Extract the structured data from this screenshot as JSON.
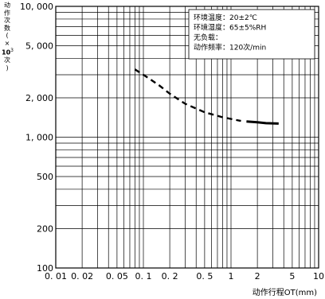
{
  "chart_data": {
    "type": "line",
    "x_scale": "log",
    "y_scale": "log",
    "xlim": [
      0.01,
      10
    ],
    "ylim": [
      100,
      10000
    ],
    "x_ticks": [
      0.01,
      0.02,
      0.05,
      0.1,
      0.2,
      0.5,
      1,
      2,
      5,
      10
    ],
    "x_tick_labels": [
      "0. 01",
      "0. 02",
      "0. 05",
      "0. 1",
      "0. 2",
      "0. 5",
      "1",
      "2",
      "5",
      "10"
    ],
    "y_ticks": [
      100,
      200,
      500,
      1000,
      2000,
      5000,
      10000
    ],
    "y_tick_labels": [
      "100",
      "200",
      "500",
      "1, 000",
      "2, 000",
      "5, 000",
      "10, 000"
    ],
    "grid": true,
    "xlabel": "动作行程OT(mm)",
    "ylabel": {
      "chars": [
        "动",
        "作",
        "次",
        "数",
        "(",
        "×"
      ],
      "base": "10",
      "exp": "3",
      "tail": [
        "次",
        ")"
      ]
    },
    "annotation_lines": [
      "环境温度：20±2℃",
      "环境湿度：65±5%RH",
      "无负载：",
      "动作频率：120次/min"
    ],
    "series": [
      {
        "style": "dashed",
        "x": [
          0.08,
          0.1,
          0.15,
          0.2,
          0.3,
          0.5,
          0.8,
          1.3
        ],
        "y": [
          3300,
          3000,
          2500,
          2150,
          1800,
          1550,
          1420,
          1330
        ]
      },
      {
        "style": "solid",
        "x": [
          1.5,
          2,
          2.5,
          3.5
        ],
        "y": [
          1320,
          1300,
          1280,
          1270
        ]
      }
    ]
  }
}
